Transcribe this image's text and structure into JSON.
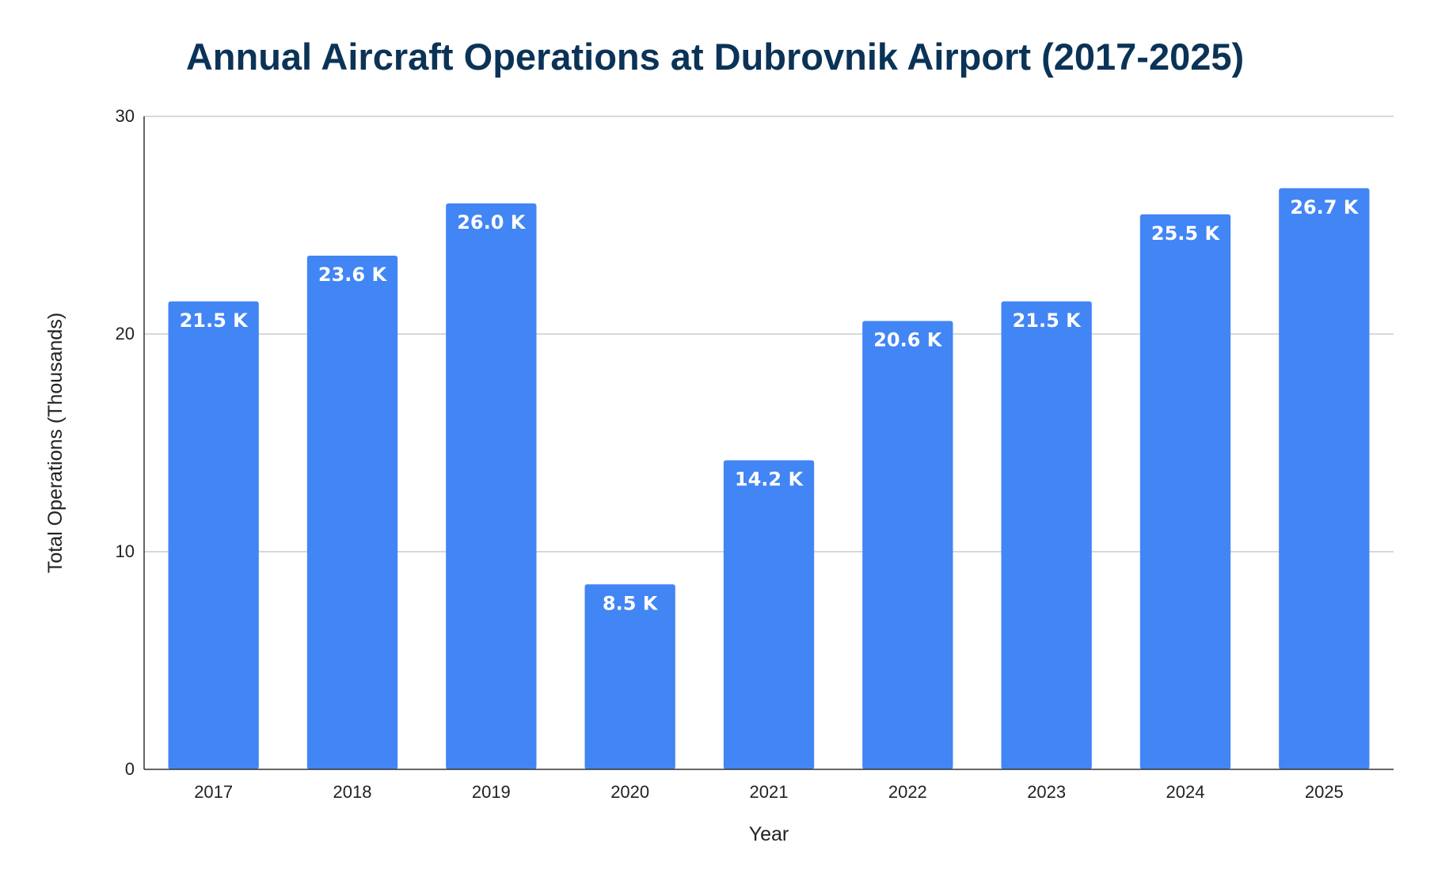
{
  "chart_data": {
    "type": "bar",
    "title": "Annual Aircraft Operations at Dubrovnik Airport (2017-2025)",
    "xlabel": "Year",
    "ylabel": "Total Operations (Thousands)",
    "categories": [
      "2017",
      "2018",
      "2019",
      "2020",
      "2021",
      "2022",
      "2023",
      "2024",
      "2025"
    ],
    "values": [
      21.5,
      23.6,
      26.0,
      8.5,
      14.2,
      20.6,
      21.5,
      25.5,
      26.7
    ],
    "data_labels": [
      "21.5 K",
      "23.6 K",
      "26.0 K",
      "8.5 K",
      "14.2 K",
      "20.6 K",
      "21.5 K",
      "25.5 K",
      "26.7 K"
    ],
    "ylim": [
      0,
      30
    ],
    "yticks": [
      "0",
      "10",
      "20",
      "30"
    ],
    "grid": true,
    "legend": "none",
    "colors": {
      "bar": "#4285f4",
      "title": "#0b3357",
      "gridline": "#cccccc",
      "axis": "#333333"
    }
  }
}
